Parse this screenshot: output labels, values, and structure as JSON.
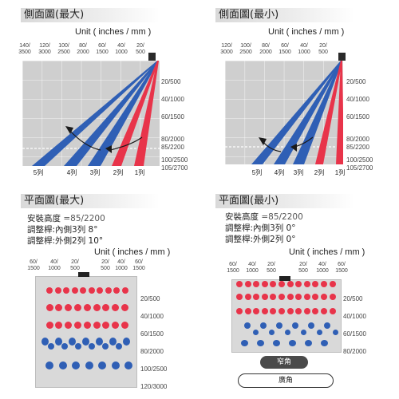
{
  "titles": {
    "side_max": "側面圖(最大)",
    "side_min": "側面圖(最小)",
    "plan_max": "平面圖(最大)",
    "plan_min": "平面圖(最小)"
  },
  "unit_label": "Unit ( inches / mm )",
  "side_max": {
    "top_ticks": [
      "140/\n3500",
      "120/\n3000",
      "100/\n2500",
      "80/\n2000",
      "60/\n1500",
      "40/\n1000",
      "20/\n500"
    ],
    "right_ticks": [
      "20/500",
      "40/1000",
      "60/1500",
      "80/2000",
      "85/2200",
      "100/2500",
      "105/2700"
    ],
    "columns": [
      "5列",
      "4列",
      "3列",
      "2列",
      "1列"
    ]
  },
  "side_min": {
    "top_ticks": [
      "120/\n3000",
      "100/\n2500",
      "80/\n2000",
      "60/\n1500",
      "40/\n1000",
      "20/\n500"
    ],
    "right_ticks": [
      "20/500",
      "40/1000",
      "60/1500",
      "80/2000",
      "85/2200",
      "100/2500",
      "105/2700"
    ],
    "columns": [
      "5列",
      "4列",
      "3列",
      "2列",
      "1列"
    ]
  },
  "plan_max": {
    "height_label": "安裝高度",
    "height_value": "=85/2200",
    "inner_label": "調整桿:內側3列 8°",
    "outer_label": "調整桿:外側2列 10°",
    "top_ticks": [
      "60/\n1500",
      "40/\n1000",
      "20/\n500",
      "20/\n500",
      "40/\n1000",
      "60/\n1500"
    ],
    "right_ticks": [
      "20/500",
      "40/1000",
      "60/1500",
      "80/2000",
      "100/2500",
      "120/3000"
    ]
  },
  "plan_min": {
    "height_label": "安裝高度",
    "height_value": "=85/2200",
    "inner_label": "調整桿:內側3列 0°",
    "outer_label": "調整桿:外側2列 0°",
    "top_ticks": [
      "60/\n1500",
      "40/\n1000",
      "20/\n500",
      "20/\n500",
      "40/\n1000",
      "60/\n1500"
    ],
    "right_ticks": [
      "20/500",
      "40/1000",
      "60/1500",
      "80/2000"
    ],
    "narrow_label": "窄角",
    "wide_label": "廣角"
  },
  "colors": {
    "red": "#e8344a",
    "blue": "#2f5fb5",
    "panel": "#d9d9d9",
    "arrow": "#1a1a1a"
  }
}
